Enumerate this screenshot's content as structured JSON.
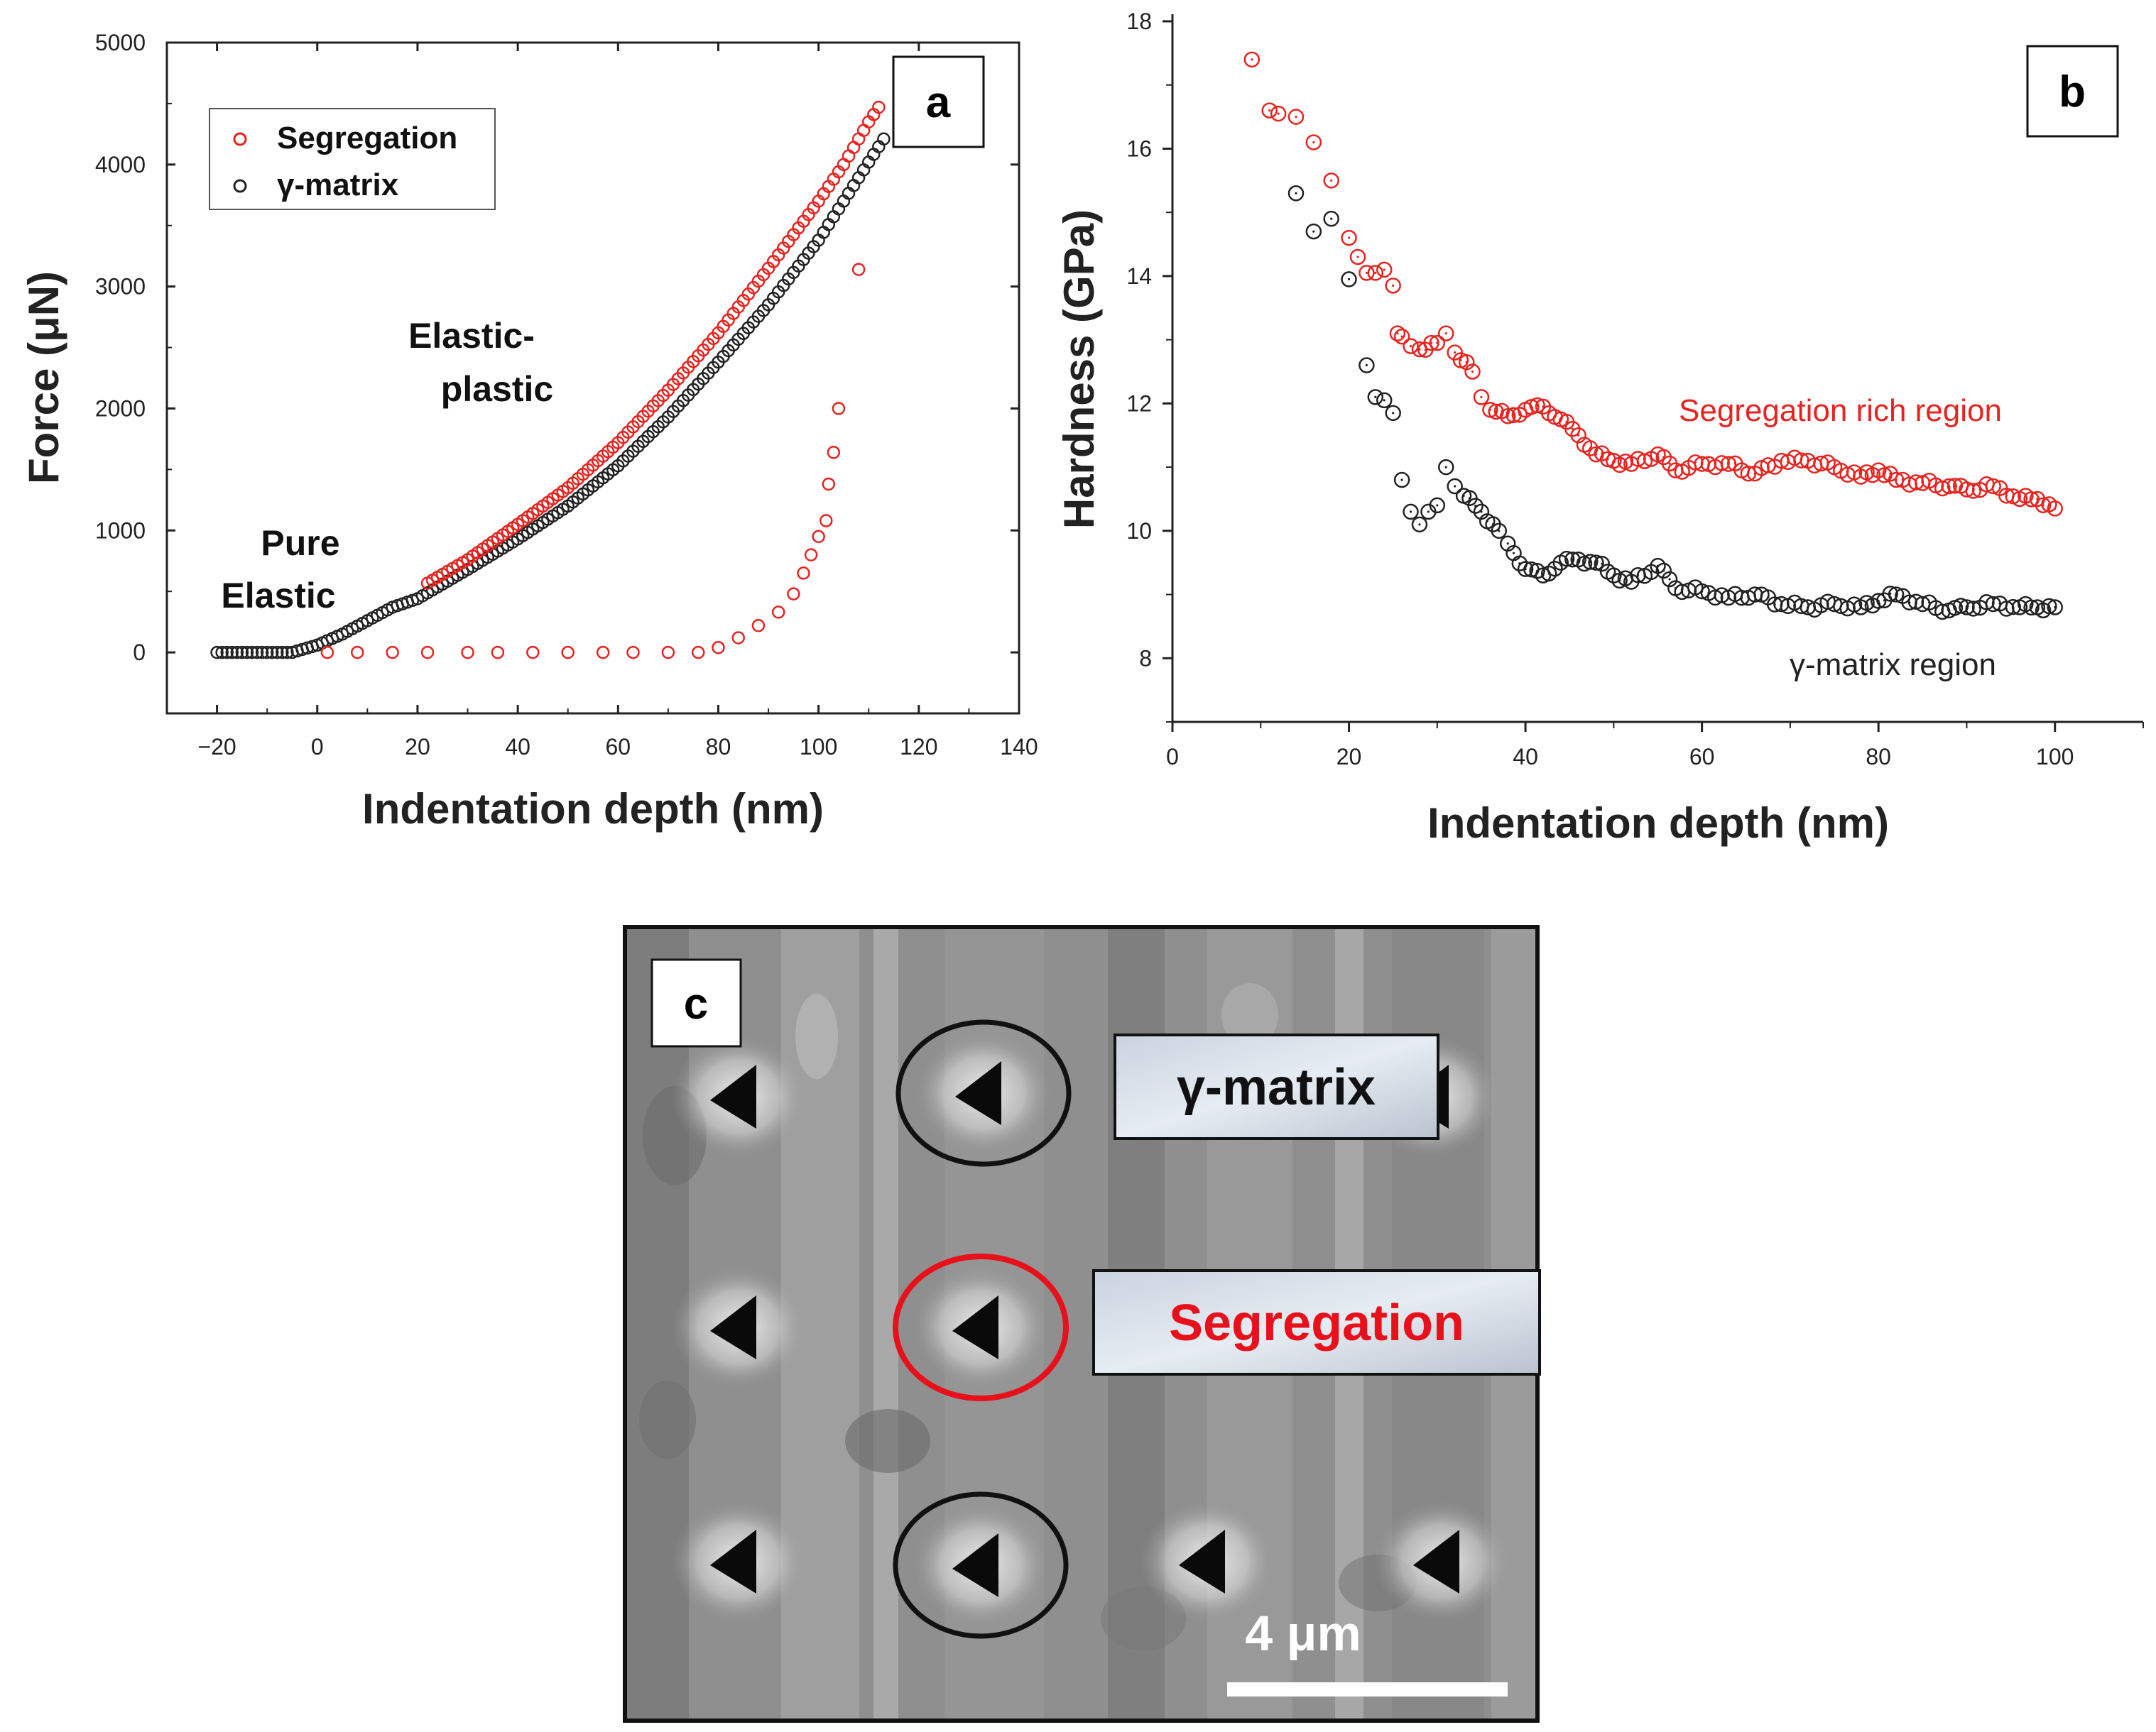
{
  "colors": {
    "segregation": "#e8231f",
    "matrix": "#222222"
  },
  "chart_data": [
    {
      "panel": "a",
      "type": "scatter",
      "xlabel": "Indentation depth (nm)",
      "ylabel": "Force (μN)",
      "xlim": [
        -30,
        140
      ],
      "ylim": [
        -500,
        5000
      ],
      "xticks": [
        -20,
        0,
        20,
        40,
        60,
        80,
        100,
        120,
        140
      ],
      "yticks": [
        0,
        1000,
        2000,
        3000,
        4000,
        5000
      ],
      "xtick_labels": [
        "−20",
        "0",
        "20",
        "40",
        "60",
        "80",
        "100",
        "120",
        "140"
      ],
      "ytick_labels": [
        "0",
        "1000",
        "2000",
        "3000",
        "4000",
        "5000"
      ],
      "legend": {
        "placement": "top-left",
        "entries": [
          "Segregation",
          "γ-matrix"
        ]
      },
      "annotations": [
        "Pure",
        "Elastic",
        "Elastic-",
        "plastic"
      ],
      "series": [
        {
          "name": "Segregation",
          "loading": [
            [
              -20,
              0
            ],
            [
              -10,
              0
            ],
            [
              -5,
              0
            ],
            [
              0,
              60
            ],
            [
              5,
              150
            ],
            [
              10,
              260
            ],
            [
              15,
              380
            ],
            [
              20,
              520
            ],
            [
              30,
              760
            ],
            [
              40,
              1050
            ],
            [
              50,
              1350
            ],
            [
              60,
              1720
            ],
            [
              70,
              2150
            ],
            [
              80,
              2620
            ],
            [
              90,
              3150
            ],
            [
              100,
              3700
            ],
            [
              105,
              4000
            ],
            [
              110,
              4350
            ],
            [
              112,
              4470
            ]
          ],
          "unloading": [
            [
              2,
              0
            ],
            [
              8,
              0
            ],
            [
              15,
              0
            ],
            [
              22,
              0
            ],
            [
              30,
              0
            ],
            [
              36,
              0
            ],
            [
              43,
              0
            ],
            [
              50,
              0
            ],
            [
              57,
              0
            ],
            [
              63,
              0
            ],
            [
              70,
              0
            ],
            [
              76,
              0
            ],
            [
              80,
              40
            ],
            [
              84,
              120
            ],
            [
              88,
              220
            ],
            [
              92,
              330
            ],
            [
              95,
              480
            ],
            [
              97,
              650
            ],
            [
              98.5,
              800
            ],
            [
              100,
              950
            ],
            [
              101.5,
              1080
            ],
            [
              102,
              1380
            ],
            [
              103,
              1640
            ],
            [
              104,
              2000
            ],
            [
              108,
              3140
            ]
          ]
        },
        {
          "name": "γ-matrix",
          "loading": [
            [
              -20,
              0
            ],
            [
              -10,
              0
            ],
            [
              -5,
              0
            ],
            [
              0,
              60
            ],
            [
              5,
              150
            ],
            [
              10,
              260
            ],
            [
              15,
              370
            ],
            [
              20,
              440
            ],
            [
              30,
              680
            ],
            [
              40,
              930
            ],
            [
              50,
              1200
            ],
            [
              60,
              1530
            ],
            [
              70,
              1930
            ],
            [
              80,
              2380
            ],
            [
              90,
              2850
            ],
            [
              100,
              3380
            ],
            [
              105,
              3700
            ],
            [
              110,
              4020
            ],
            [
              113,
              4210
            ]
          ],
          "unloading": []
        }
      ]
    },
    {
      "panel": "b",
      "type": "scatter",
      "xlabel": "Indentation depth (nm)",
      "ylabel": "Hardness (GPa)",
      "xlim": [
        0,
        110
      ],
      "ylim": [
        7,
        18
      ],
      "xticks": [
        0,
        20,
        40,
        60,
        80,
        100
      ],
      "yticks": [
        8,
        10,
        12,
        14,
        16,
        18
      ],
      "xtick_labels": [
        "0",
        "20",
        "40",
        "60",
        "80",
        "100"
      ],
      "ytick_labels": [
        "8",
        "10",
        "12",
        "14",
        "16",
        "18"
      ],
      "annotations": [
        "Segregation rich region",
        "γ-matrix region"
      ],
      "series": [
        {
          "name": "Segregation rich region",
          "points": [
            [
              9,
              17.4
            ],
            [
              11,
              16.6
            ],
            [
              12,
              16.55
            ],
            [
              14,
              16.5
            ],
            [
              16,
              16.1
            ],
            [
              18,
              15.5
            ],
            [
              20,
              14.6
            ],
            [
              21,
              14.3
            ],
            [
              22,
              14.05
            ],
            [
              23,
              14.05
            ],
            [
              24,
              14.1
            ],
            [
              25,
              13.85
            ],
            [
              25.5,
              13.1
            ],
            [
              26,
              13.05
            ],
            [
              27,
              12.9
            ],
            [
              28,
              12.85
            ],
            [
              30,
              12.95
            ],
            [
              31,
              13.1
            ],
            [
              32,
              12.8
            ],
            [
              34,
              12.5
            ],
            [
              35,
              12.1
            ],
            [
              36,
              11.9
            ],
            [
              38,
              11.8
            ],
            [
              40,
              11.9
            ],
            [
              42,
              11.95
            ],
            [
              44,
              11.75
            ],
            [
              46,
              11.5
            ],
            [
              48,
              11.2
            ],
            [
              50,
              11.1
            ],
            [
              52,
              11.05
            ],
            [
              55,
              11.2
            ],
            [
              57,
              10.95
            ],
            [
              60,
              11.05
            ],
            [
              63,
              11.05
            ],
            [
              66,
              10.9
            ],
            [
              69,
              11.1
            ],
            [
              72,
              11.1
            ],
            [
              75,
              11.0
            ],
            [
              78,
              10.85
            ],
            [
              80,
              10.95
            ],
            [
              82,
              10.8
            ],
            [
              85,
              10.75
            ],
            [
              88,
              10.7
            ],
            [
              90,
              10.65
            ],
            [
              93,
              10.7
            ],
            [
              96,
              10.5
            ],
            [
              98,
              10.5
            ],
            [
              100,
              10.35
            ]
          ]
        },
        {
          "name": "γ-matrix region",
          "points": [
            [
              14,
              15.3
            ],
            [
              16,
              14.7
            ],
            [
              18,
              14.9
            ],
            [
              20,
              13.95
            ],
            [
              22,
              12.6
            ],
            [
              23,
              12.1
            ],
            [
              24,
              12.05
            ],
            [
              25,
              11.85
            ],
            [
              26,
              10.8
            ],
            [
              27,
              10.3
            ],
            [
              28,
              10.1
            ],
            [
              29,
              10.3
            ],
            [
              30,
              10.4
            ],
            [
              31,
              11.0
            ],
            [
              32,
              10.7
            ],
            [
              33,
              10.55
            ],
            [
              35,
              10.3
            ],
            [
              37,
              10.0
            ],
            [
              38,
              9.8
            ],
            [
              40,
              9.4
            ],
            [
              42,
              9.3
            ],
            [
              44,
              9.5
            ],
            [
              46,
              9.55
            ],
            [
              48,
              9.5
            ],
            [
              50,
              9.3
            ],
            [
              52,
              9.2
            ],
            [
              55,
              9.45
            ],
            [
              57,
              9.1
            ],
            [
              60,
              9.05
            ],
            [
              63,
              8.95
            ],
            [
              66,
              9.0
            ],
            [
              69,
              8.85
            ],
            [
              72,
              8.8
            ],
            [
              75,
              8.85
            ],
            [
              78,
              8.8
            ],
            [
              80,
              8.9
            ],
            [
              82,
              9.0
            ],
            [
              85,
              8.85
            ],
            [
              88,
              8.75
            ],
            [
              90,
              8.8
            ],
            [
              93,
              8.85
            ],
            [
              96,
              8.8
            ],
            [
              98,
              8.8
            ],
            [
              100,
              8.8
            ]
          ]
        }
      ]
    }
  ],
  "image_c": {
    "panel": "c",
    "labels": {
      "matrix": "γ-matrix",
      "segregation": "Segregation"
    },
    "scale_bar": "4 μm"
  }
}
